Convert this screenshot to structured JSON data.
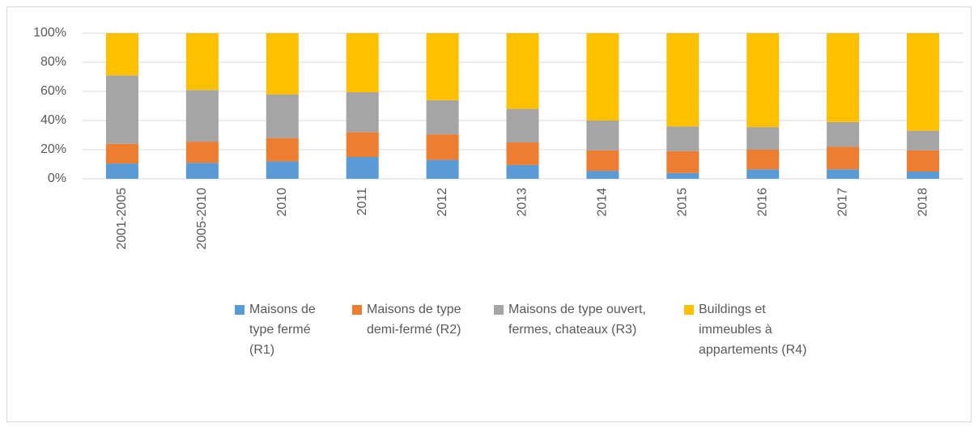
{
  "chart_data": {
    "type": "stacked_bar",
    "categories": [
      "2001-2005",
      "2005-2010",
      "2010",
      "2011",
      "2012",
      "2013",
      "2014",
      "2015",
      "2016",
      "2017",
      "2018"
    ],
    "series": [
      {
        "name": "Maisons de type fermé (R1)",
        "color": "#5b9bd5",
        "values": [
          10.5,
          11,
          12,
          15,
          13,
          9.5,
          5.5,
          4,
          6.5,
          6.5,
          5
        ]
      },
      {
        "name": "Maisons de type demi-fermé (R2)",
        "color": "#ed7d31",
        "values": [
          13.5,
          14.5,
          16,
          17,
          17.5,
          15.5,
          14,
          15,
          13.5,
          15.5,
          14.5
        ]
      },
      {
        "name": "Maisons de type ouvert, fermes, chateaux (R3)",
        "color": "#a5a5a5",
        "values": [
          47,
          35.5,
          30,
          27.5,
          23.5,
          23,
          20.5,
          17,
          15.5,
          17,
          13.5
        ]
      },
      {
        "name": "Buildings et immeubles à appartements (R4)",
        "color": "#ffc000",
        "values": [
          29,
          39,
          42,
          40.5,
          46,
          52,
          60,
          64,
          64.5,
          61,
          67
        ]
      }
    ],
    "ylim": [
      0,
      100
    ],
    "yticks": [
      {
        "value": 0,
        "label": "0%"
      },
      {
        "value": 20,
        "label": "20%"
      },
      {
        "value": 40,
        "label": "40%"
      },
      {
        "value": 60,
        "label": "60%"
      },
      {
        "value": 80,
        "label": "80%"
      },
      {
        "value": 100,
        "label": "100%"
      }
    ],
    "grid": true,
    "legend": "bottom"
  }
}
